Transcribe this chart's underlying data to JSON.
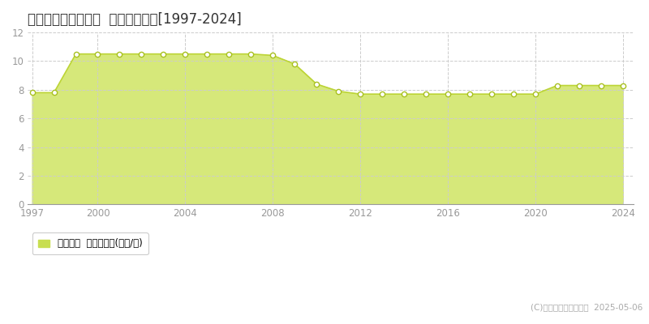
{
  "title": "八丈島八丈町大賀郷  基準地価推移[1997-2024]",
  "years": [
    1997,
    1998,
    1999,
    2000,
    2001,
    2002,
    2003,
    2004,
    2005,
    2006,
    2007,
    2008,
    2009,
    2010,
    2011,
    2012,
    2013,
    2014,
    2015,
    2016,
    2017,
    2018,
    2019,
    2020,
    2021,
    2022,
    2023,
    2024
  ],
  "values": [
    7.8,
    7.8,
    10.5,
    10.5,
    10.5,
    10.5,
    10.5,
    10.5,
    10.5,
    10.5,
    10.5,
    10.4,
    9.8,
    8.4,
    7.9,
    7.7,
    7.7,
    7.7,
    7.7,
    7.7,
    7.7,
    7.7,
    7.7,
    7.7,
    8.3,
    8.3,
    8.3,
    8.3
  ],
  "line_color": "#bcd435",
  "fill_color": "#d6e87a",
  "marker_face_color": "#ffffff",
  "marker_edge_color": "#a8c020",
  "background_color": "#ffffff",
  "plot_bg_color": "#ffffff",
  "grid_color": "#cccccc",
  "ylim": [
    0,
    12
  ],
  "yticks": [
    0,
    2,
    4,
    6,
    8,
    10,
    12
  ],
  "xticks": [
    1997,
    2000,
    2004,
    2008,
    2012,
    2016,
    2020,
    2024
  ],
  "legend_label": "基準地価  平均坪単価(万円/坪)",
  "copyright": "(C)土地価格ドットコム  2025-05-06",
  "legend_color": "#c8de50",
  "xlim_left": 1996.8,
  "xlim_right": 2024.5
}
